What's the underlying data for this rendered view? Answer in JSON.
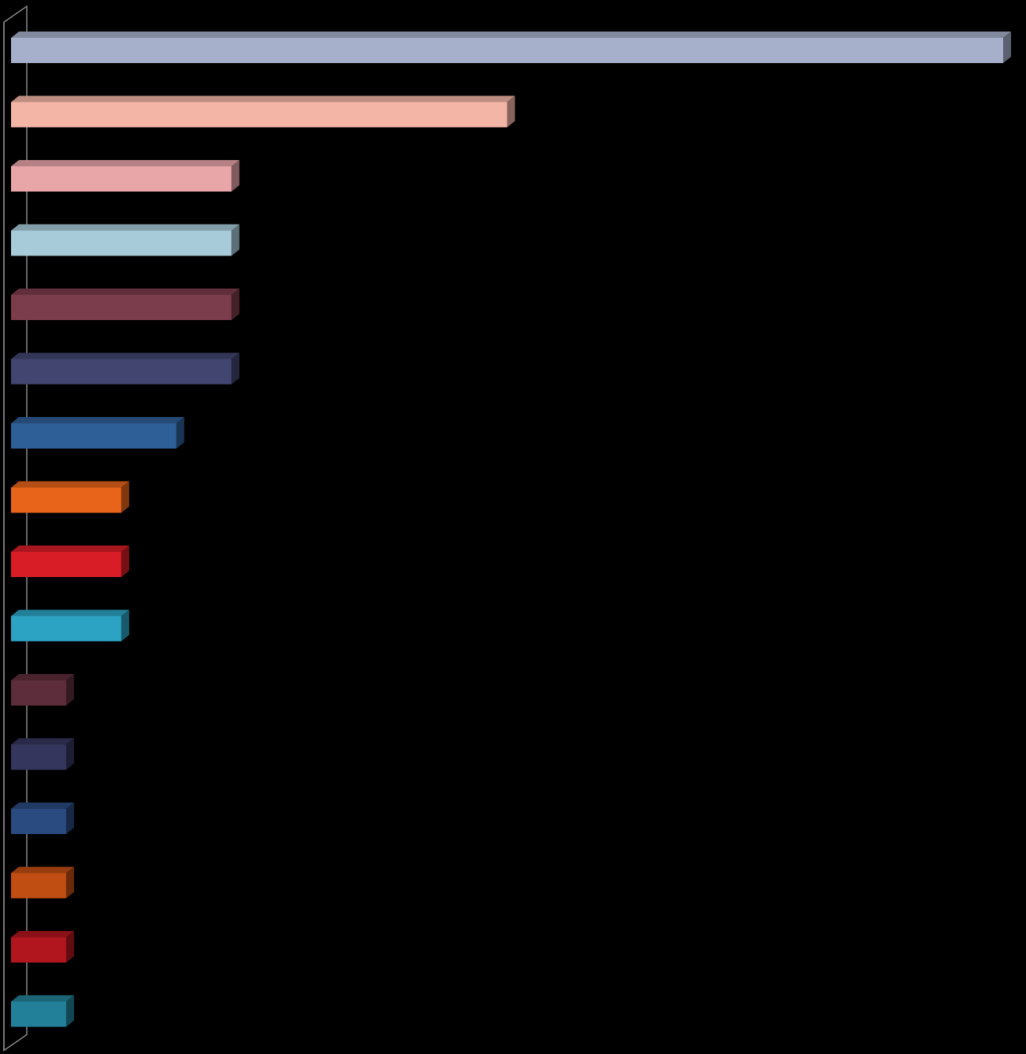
{
  "chart_data": {
    "type": "bar",
    "orientation": "horizontal",
    "style": "3d",
    "title": "",
    "xlabel": "",
    "ylabel": "",
    "xlim": [
      0,
      18
    ],
    "grid": false,
    "legend": "none",
    "values": [
      18,
      9,
      4,
      4,
      4,
      4,
      3,
      2,
      2,
      2,
      1,
      1,
      1,
      1,
      1,
      1
    ],
    "colors": [
      "#a6b0cb",
      "#f3b5a6",
      "#e9a6a9",
      "#a7cbd9",
      "#7b3c4b",
      "#42456f",
      "#2f5f97",
      "#e8641a",
      "#d81d27",
      "#2ca3c3",
      "#5d2d3b",
      "#34365d",
      "#294b7f",
      "#c04d12",
      "#b1161e",
      "#228199"
    ]
  }
}
